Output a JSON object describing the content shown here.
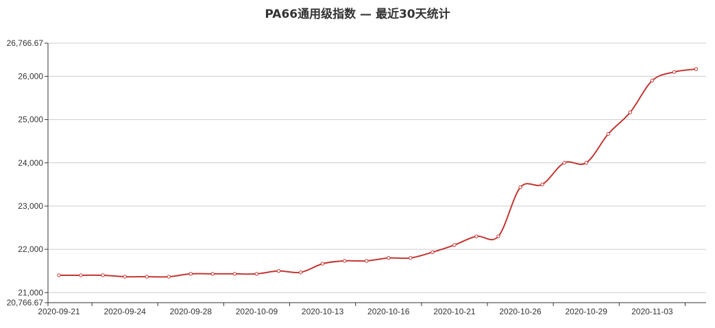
{
  "chart_data": {
    "type": "line",
    "title": "PA66通用级指数  —  最近30天统计",
    "xlabel": "",
    "ylabel": "",
    "ylim": [
      20766.67,
      26766.67
    ],
    "y_ticks": [
      {
        "value": 20766.67,
        "label": "20,766.67"
      },
      {
        "value": 21000,
        "label": "21,000"
      },
      {
        "value": 22000,
        "label": "22,000"
      },
      {
        "value": 23000,
        "label": "23,000"
      },
      {
        "value": 24000,
        "label": "24,000"
      },
      {
        "value": 25000,
        "label": "25,000"
      },
      {
        "value": 26000,
        "label": "26,000"
      },
      {
        "value": 26766.67,
        "label": "26,766.67"
      }
    ],
    "x_tick_labels": [
      "2020-09-21",
      "2020-09-24",
      "2020-09-28",
      "2020-10-09",
      "2020-10-13",
      "2020-10-16",
      "2020-10-21",
      "2020-10-26",
      "2020-10-29",
      "2020-11-03"
    ],
    "grid": true,
    "series": [
      {
        "name": "",
        "color": "#c23531",
        "values": [
          21400,
          21400,
          21400,
          21367,
          21367,
          21367,
          21433,
          21433,
          21433,
          21433,
          21500,
          21467,
          21667,
          21733,
          21733,
          21800,
          21800,
          21933,
          22100,
          22300,
          22300,
          23433,
          23500,
          24000,
          24000,
          24667,
          25167,
          25900,
          26100,
          26167
        ]
      }
    ]
  }
}
